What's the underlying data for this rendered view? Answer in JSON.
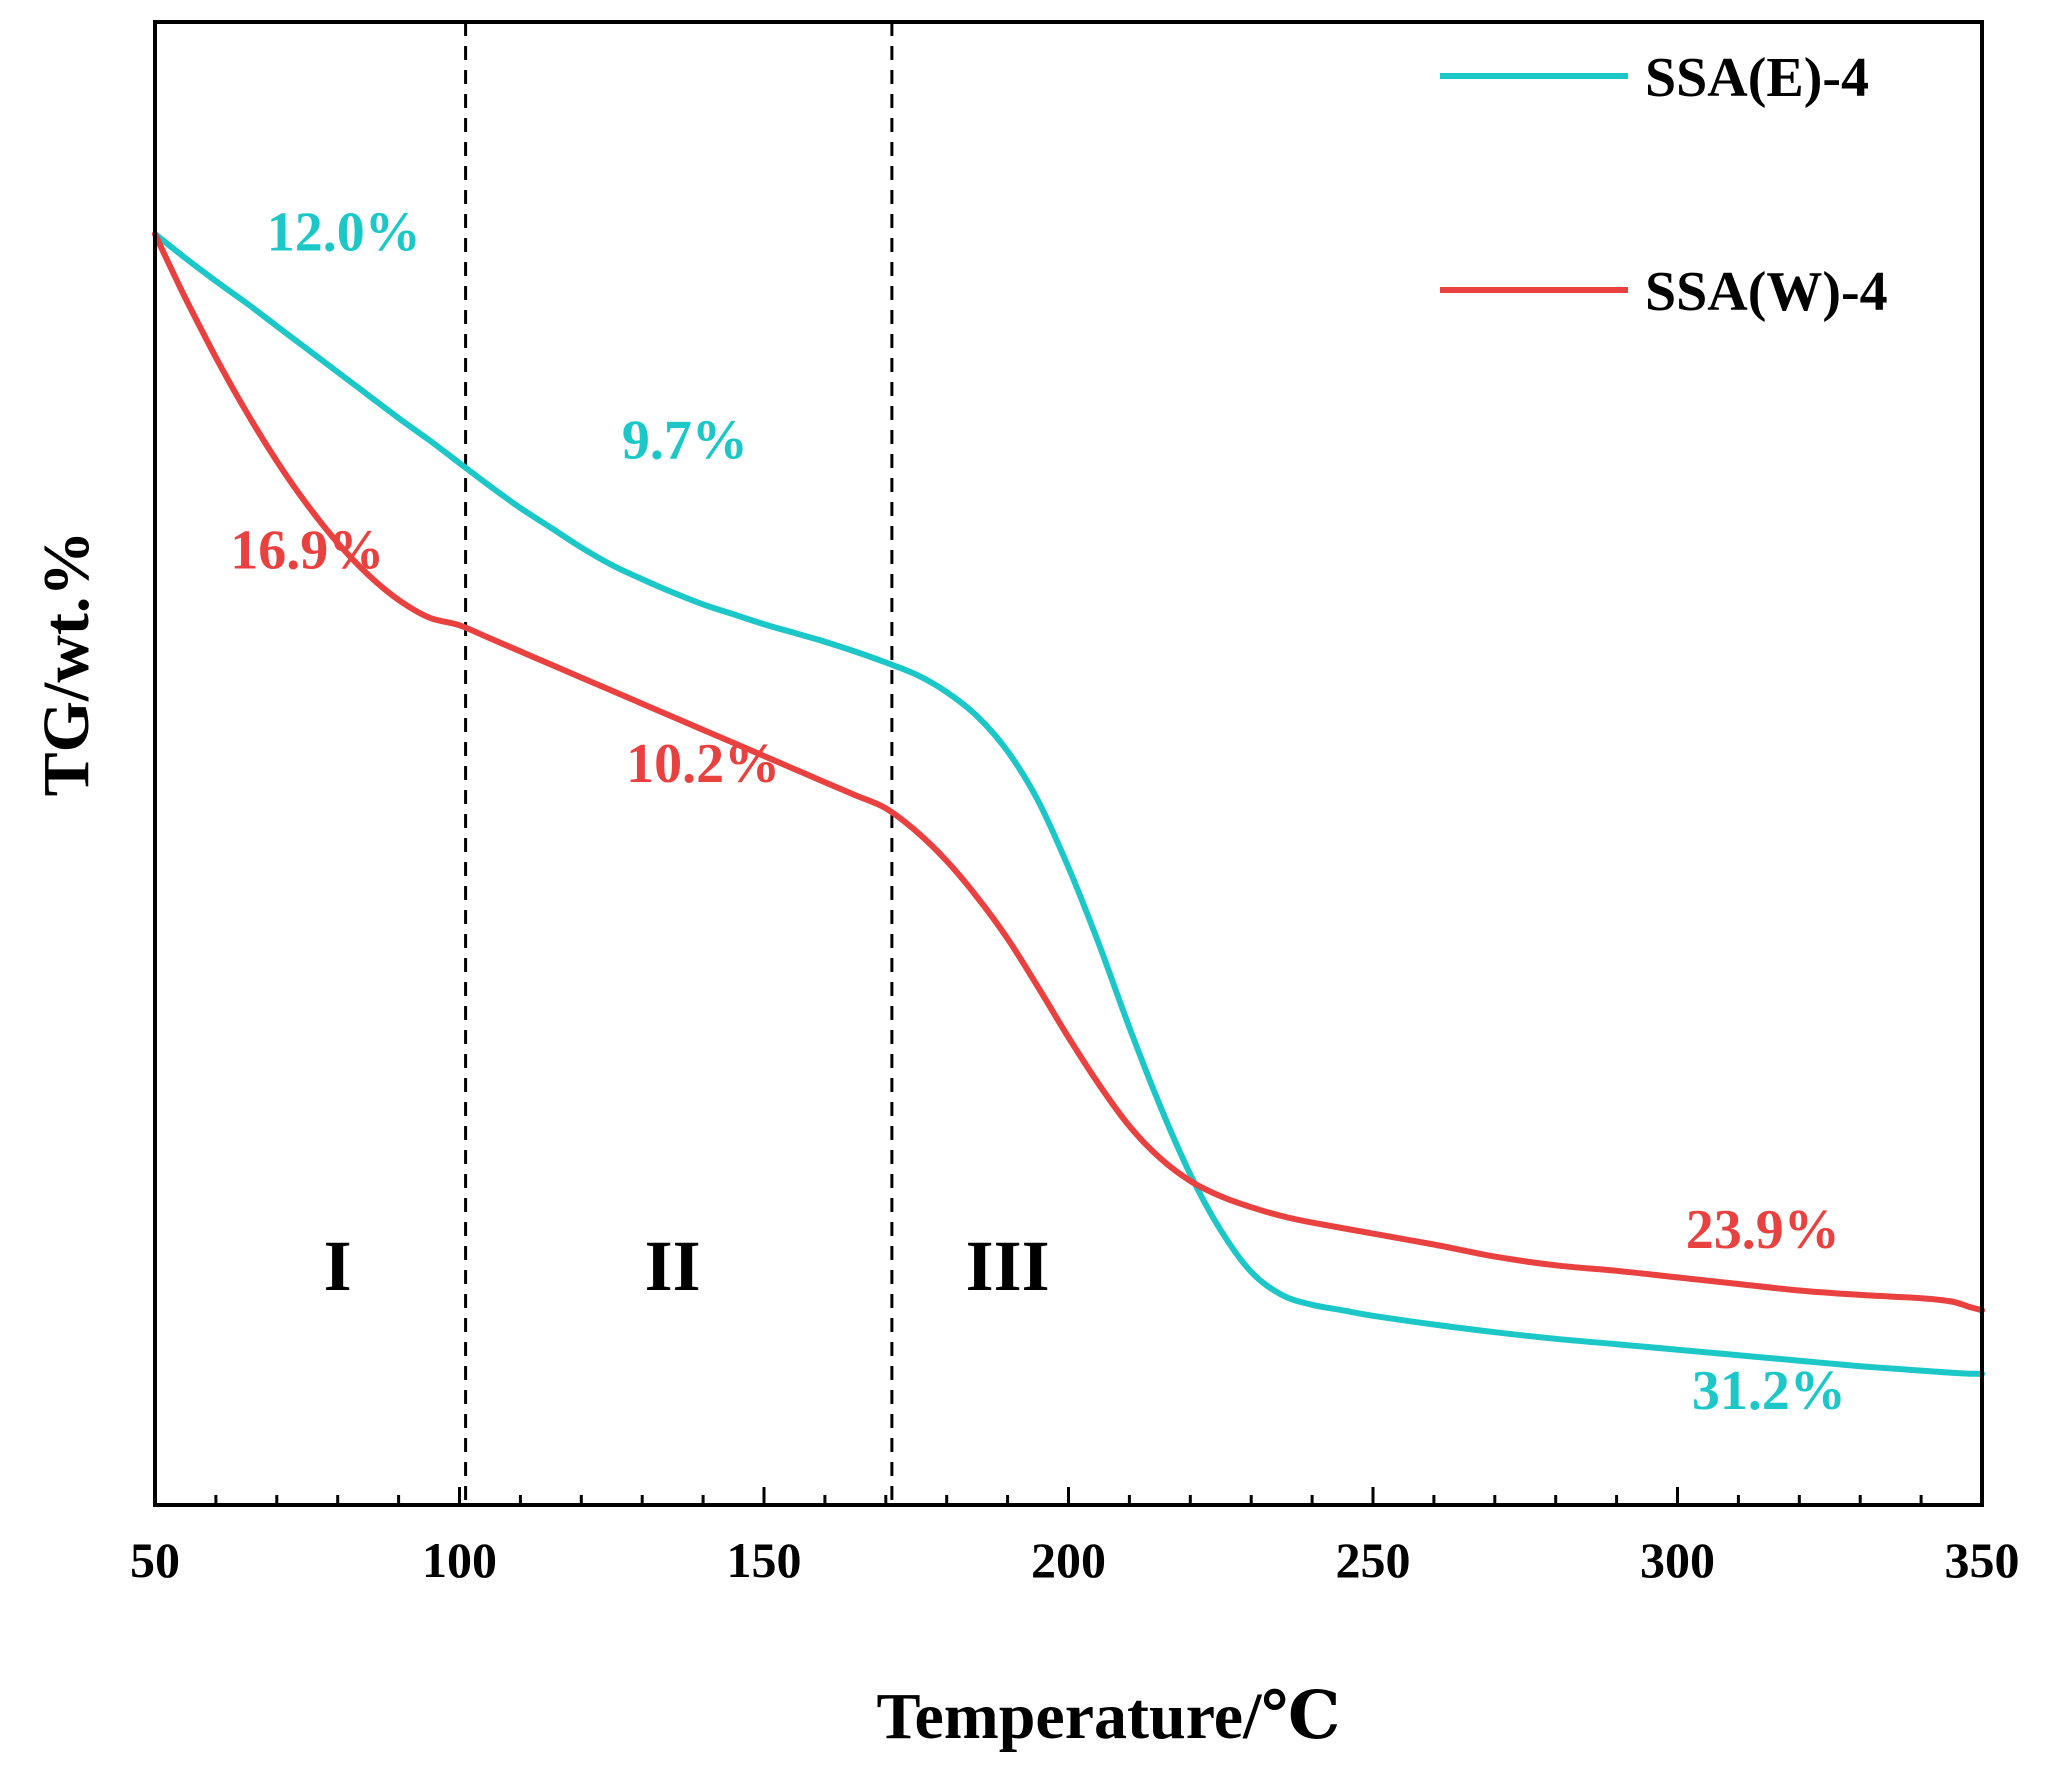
{
  "chart_data": {
    "type": "line",
    "title": "",
    "xlabel": "Temperature/℃",
    "ylabel": "TG/wt.%",
    "xlim": [
      50,
      350
    ],
    "ylim": [
      0,
      100
    ],
    "grid": false,
    "x_ticks": [
      50,
      100,
      150,
      200,
      250,
      300,
      350
    ],
    "x_tick_labels": [
      "50",
      "100",
      "150",
      "200",
      "250",
      "300",
      "350"
    ],
    "y_ticks_shown": false,
    "legend_position": "top-right",
    "series": [
      {
        "name": "SSA(E)-4",
        "color": "#1cc7c7",
        "x": [
          50,
          55,
          60,
          65,
          70,
          75,
          80,
          85,
          90,
          95,
          100,
          105,
          110,
          115,
          120,
          125,
          130,
          135,
          140,
          145,
          150,
          155,
          160,
          165,
          170,
          175,
          180,
          185,
          190,
          195,
          200,
          205,
          210,
          215,
          220,
          225,
          230,
          235,
          240,
          245,
          250,
          260,
          270,
          280,
          290,
          300,
          310,
          320,
          330,
          340,
          345,
          349,
          350
        ],
        "values": [
          100.0,
          97.8,
          95.7,
          93.7,
          91.6,
          89.5,
          87.4,
          85.3,
          83.2,
          81.2,
          79.1,
          77.0,
          75.0,
          73.2,
          71.4,
          69.8,
          68.5,
          67.3,
          66.2,
          65.3,
          64.4,
          63.6,
          62.8,
          61.9,
          60.9,
          59.8,
          58.2,
          56.0,
          52.8,
          48.3,
          42.2,
          35.2,
          27.6,
          20.5,
          14.2,
          9.1,
          5.3,
          3.2,
          2.3,
          1.8,
          1.3,
          0.5,
          -0.2,
          -0.8,
          -1.3,
          -1.8,
          -2.3,
          -2.8,
          -3.3,
          -3.7,
          -3.9,
          -4.0,
          -4.0
        ]
      },
      {
        "name": "SSA(W)-4",
        "color": "#e8413f",
        "x": [
          50,
          52,
          55,
          60,
          65,
          70,
          75,
          80,
          85,
          90,
          95,
          100,
          105,
          110,
          115,
          120,
          125,
          130,
          135,
          140,
          145,
          150,
          155,
          160,
          165,
          170,
          175,
          180,
          185,
          190,
          195,
          200,
          205,
          210,
          215,
          220,
          225,
          230,
          235,
          240,
          250,
          260,
          270,
          280,
          290,
          300,
          310,
          320,
          330,
          340,
          345,
          348,
          350
        ],
        "values": [
          100.0,
          98.0,
          95.2,
          90.7,
          86.5,
          82.6,
          79.0,
          75.7,
          72.7,
          70.0,
          67.5,
          71.0,
          68.8,
          66.9,
          65.1,
          63.4,
          61.8,
          60.2,
          58.7,
          57.2,
          55.7,
          54.2,
          52.7,
          51.1,
          49.5,
          47.6,
          45.5,
          42.8,
          39.5,
          35.7,
          31.3,
          26.7,
          22.4,
          18.6,
          15.7,
          13.6,
          12.2,
          11.2,
          10.4,
          9.8,
          8.8,
          7.8,
          6.7,
          5.9,
          5.4,
          4.8,
          4.2,
          3.6,
          3.2,
          2.9,
          2.6,
          2.1,
          1.8
        ]
      }
    ],
    "region_boundaries": [
      101,
      171
    ],
    "regions": [
      "I",
      "II",
      "III"
    ],
    "annotations": [
      {
        "text": "12.0%",
        "series": "SSA(E)-4",
        "x": 81,
        "y": 98.5
      },
      {
        "text": "16.9%",
        "series": "SSA(W)-4",
        "x": 75,
        "y": 69.5
      },
      {
        "text": "9.7%",
        "series": "SSA(E)-4",
        "x": 137,
        "y": 79.5
      },
      {
        "text": "10.2%",
        "series": "SSA(W)-4",
        "x": 140,
        "y": 50.0
      },
      {
        "text": "23.9%",
        "series": "SSA(W)-4",
        "x": 314,
        "y": 7.5
      },
      {
        "text": "31.2%",
        "series": "SSA(E)-4",
        "x": 315,
        "y": -7.2
      }
    ]
  }
}
